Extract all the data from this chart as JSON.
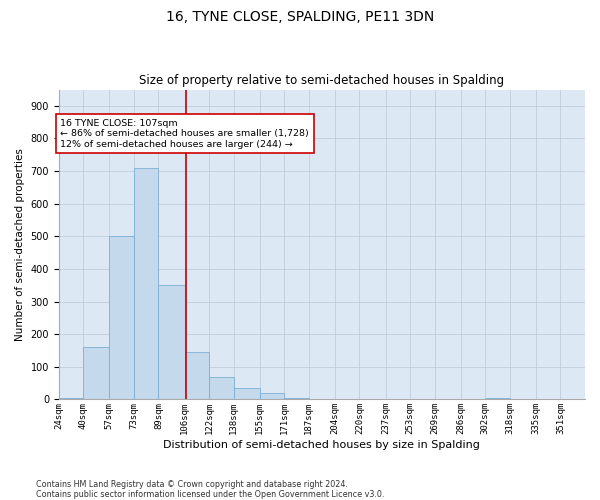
{
  "title": "16, TYNE CLOSE, SPALDING, PE11 3DN",
  "subtitle": "Size of property relative to semi-detached houses in Spalding",
  "xlabel": "Distribution of semi-detached houses by size in Spalding",
  "ylabel": "Number of semi-detached properties",
  "footnote1": "Contains HM Land Registry data © Crown copyright and database right 2024.",
  "footnote2": "Contains public sector information licensed under the Open Government Licence v3.0.",
  "bin_labels": [
    "24sqm",
    "40sqm",
    "57sqm",
    "73sqm",
    "89sqm",
    "106sqm",
    "122sqm",
    "138sqm",
    "155sqm",
    "171sqm",
    "187sqm",
    "204sqm",
    "220sqm",
    "237sqm",
    "253sqm",
    "269sqm",
    "286sqm",
    "302sqm",
    "318sqm",
    "335sqm",
    "351sqm"
  ],
  "bin_edges": [
    24,
    40,
    57,
    73,
    89,
    106,
    122,
    138,
    155,
    171,
    187,
    204,
    220,
    237,
    253,
    269,
    286,
    302,
    318,
    335,
    351,
    367
  ],
  "bar_heights": [
    5,
    160,
    500,
    710,
    350,
    145,
    70,
    35,
    20,
    5,
    0,
    0,
    0,
    0,
    0,
    0,
    0,
    5,
    0,
    0,
    0
  ],
  "bar_color": "#c5d9ed",
  "bar_edgecolor": "#7bafd4",
  "grid_color": "#b8c8d8",
  "background_color": "#dce9f5",
  "property_size": 107,
  "red_line_color": "#cc0000",
  "annotation_line1": "16 TYNE CLOSE: 107sqm",
  "annotation_line2": "← 86% of semi-detached houses are smaller (1,728)",
  "annotation_line3": "12% of semi-detached houses are larger (244) →",
  "annotation_box_color": "white",
  "annotation_box_edgecolor": "#cc0000",
  "ylim": [
    0,
    950
  ],
  "yticks": [
    0,
    100,
    200,
    300,
    400,
    500,
    600,
    700,
    800,
    900
  ]
}
